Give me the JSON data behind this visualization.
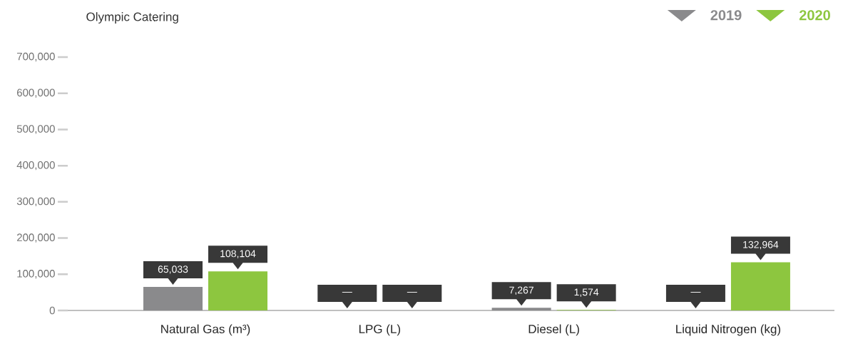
{
  "chart_data": {
    "type": "bar",
    "title": "Olympic Catering",
    "categories": [
      "Natural Gas (m³)",
      "LPG (L)",
      "Diesel (L)",
      "Liquid Nitrogen (kg)"
    ],
    "series": [
      {
        "name": "2019",
        "color": "#8a8a8c",
        "values": [
          65033,
          null,
          7267,
          null
        ],
        "value_labels": [
          "65,033",
          "—",
          "7,267",
          "—"
        ]
      },
      {
        "name": "2020",
        "color": "#8dc63f",
        "values": [
          108104,
          null,
          1574,
          132964
        ],
        "value_labels": [
          "108,104",
          "—",
          "1,574",
          "132,964"
        ]
      }
    ],
    "ylim": [
      0,
      700000
    ],
    "yticks": [
      {
        "value": 0,
        "label": "0"
      },
      {
        "value": 100000,
        "label": "100,000"
      },
      {
        "value": 200000,
        "label": "200,000"
      },
      {
        "value": 300000,
        "label": "300,000"
      },
      {
        "value": 400000,
        "label": "400,000"
      },
      {
        "value": 500000,
        "label": "500,000"
      },
      {
        "value": 600000,
        "label": "600,000"
      },
      {
        "value": 700000,
        "label": "700,000"
      }
    ],
    "grid": false,
    "legend": "top right"
  }
}
